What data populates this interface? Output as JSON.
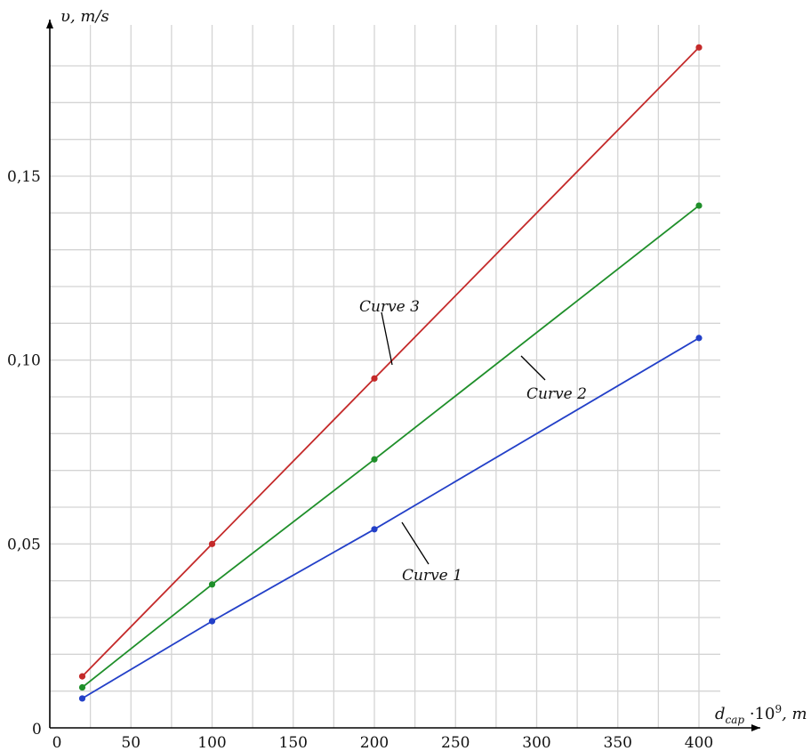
{
  "chart_data": {
    "type": "line",
    "title": "",
    "xlabel": "d_cap ·10⁹, m",
    "xlabel_parts": {
      "var": "d",
      "sub": "cap",
      "rest": " ·10",
      "sup": "9",
      "unit": ", m"
    },
    "ylabel": "υ, m/s",
    "xlim": [
      0,
      400
    ],
    "ylim": [
      0,
      0.18
    ],
    "x_ticks": [
      0,
      50,
      100,
      150,
      200,
      250,
      300,
      350,
      400
    ],
    "x_tick_labels": [
      "0",
      "50",
      "100",
      "150",
      "200",
      "250",
      "300",
      "350",
      "400"
    ],
    "y_ticks": [
      0,
      0.05,
      0.1,
      0.15
    ],
    "y_tick_labels": [
      "0",
      "0,05",
      "0,10",
      "0,15"
    ],
    "grid": true,
    "series": [
      {
        "name": "Curve 1",
        "color": "#2340c8",
        "x": [
          20,
          100,
          200,
          400
        ],
        "y": [
          0.008,
          0.029,
          0.054,
          0.106
        ]
      },
      {
        "name": "Curve 2",
        "color": "#1f8f2a",
        "x": [
          20,
          100,
          200,
          400
        ],
        "y": [
          0.011,
          0.039,
          0.073,
          0.142
        ]
      },
      {
        "name": "Curve 3",
        "color": "#c42a2a",
        "x": [
          20,
          100,
          200,
          400
        ],
        "y": [
          0.014,
          0.05,
          0.095,
          0.185
        ]
      }
    ]
  }
}
